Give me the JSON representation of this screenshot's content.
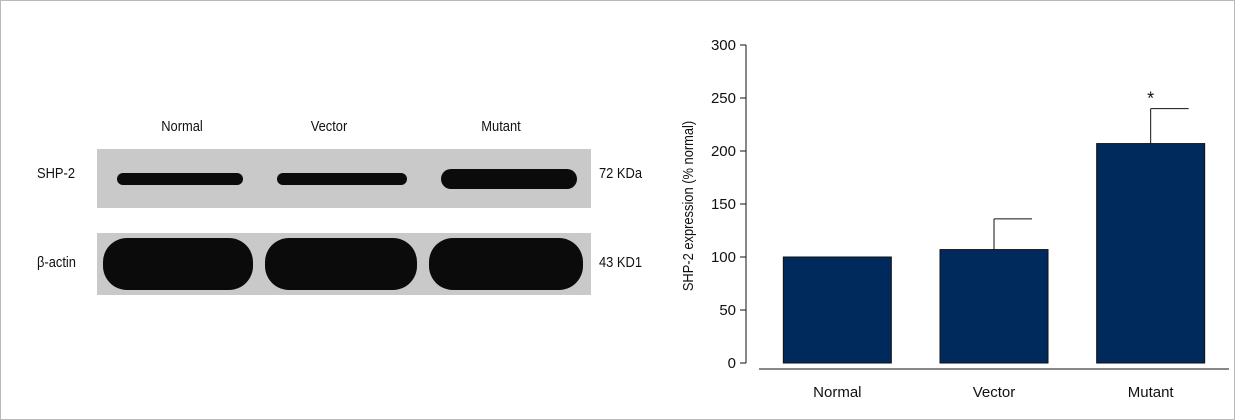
{
  "western_blot": {
    "lanes": [
      "Normal",
      "Vector",
      "Mutant"
    ],
    "rows": [
      {
        "label": "SHP-2",
        "size": "72 KDa"
      },
      {
        "label": "β-actin",
        "size": "43 KD1"
      }
    ]
  },
  "chart_data": {
    "type": "bar",
    "categories": [
      "Normal",
      "Vector",
      "Mutant"
    ],
    "values": [
      100,
      107,
      207
    ],
    "error": [
      0,
      29,
      33
    ],
    "annotations": [
      {
        "category": "Mutant",
        "text": "*"
      }
    ],
    "title": "",
    "xlabel": "",
    "ylabel": "SHP-2 expression (% normal)",
    "ylim": [
      0,
      300
    ],
    "yticks": [
      0,
      50,
      100,
      150,
      200,
      250,
      300
    ],
    "bar_color": "#002a5c",
    "grid": false
  }
}
